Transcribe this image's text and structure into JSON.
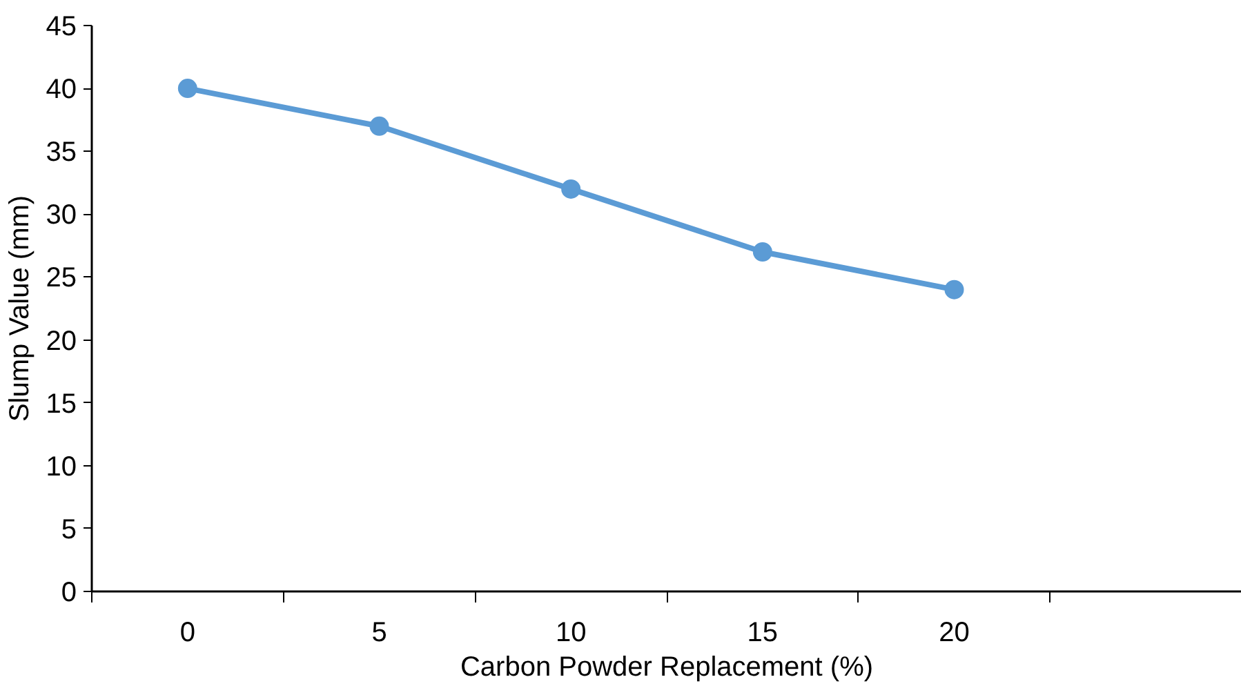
{
  "chart_data": {
    "type": "line",
    "xlabel": "Carbon Powder Replacement (%)",
    "ylabel": "Slump Value (mm)",
    "categories": [
      "0",
      "5",
      "10",
      "15",
      "20",
      null
    ],
    "series": [
      {
        "color": "#5b9bd5",
        "values": [
          40,
          37,
          32,
          27,
          24,
          null
        ]
      }
    ],
    "ylim": [
      0,
      45
    ],
    "yticks": [
      0,
      5,
      10,
      15,
      20,
      25,
      30,
      35,
      40,
      45
    ],
    "grid": false,
    "marker": "circle",
    "line_style": "solid"
  }
}
